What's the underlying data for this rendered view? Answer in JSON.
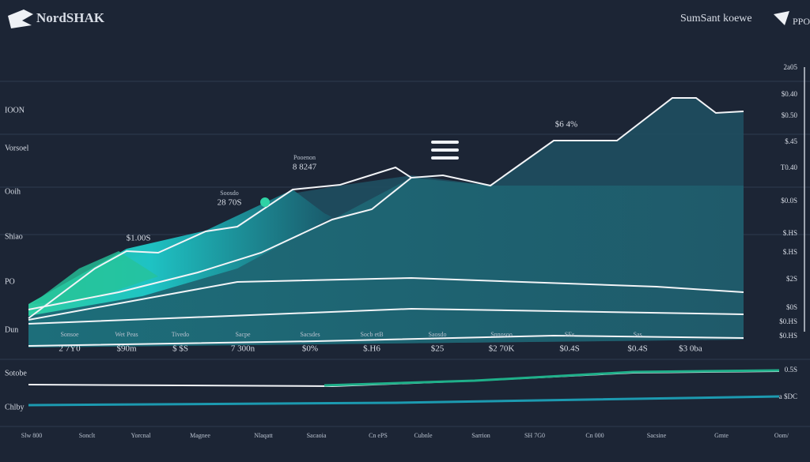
{
  "header": {
    "logo": "NordSHAK",
    "title": "SumSant koewe",
    "badge": "PPO"
  },
  "left_labels": [
    "IOON",
    "Vorsoel",
    "Ooih",
    "Shiao",
    "PO",
    "Dun",
    "Sotobe",
    "Chlby"
  ],
  "right_labels": [
    "2a05",
    "$0.40",
    "$0.50",
    "$.45",
    "T0.40",
    "$0.0S",
    "$.HS",
    "$.HS",
    "$2S",
    "$0S",
    "$0.HS",
    "$0.HS",
    "0.5S",
    "a $DC"
  ],
  "bottom_labels": [
    "Slw 800",
    "Sonclt",
    "Yorcnal",
    "Magnee",
    "Nlaqatt",
    "Sacaoia",
    "Cn ePS",
    "Cubnle",
    "Sarrion",
    "SH 7G0",
    "Cn 000",
    "Sacsine",
    "Gmte",
    "Oom/"
  ],
  "value_row": [
    "2 7Y0",
    "$90m",
    "$ $S",
    "7 300n",
    "$0%",
    "$.H6",
    "$25",
    "$2 70K",
    "$0.4S",
    "$0.4S",
    "$3 0ba"
  ],
  "caption_row": [
    "Sonsoe",
    "Wet Peas",
    "Tivedo",
    "Sacpe",
    "Sacsdes",
    "Socb etB",
    "Saosdo",
    "Snnosoo",
    "SEs",
    "Sas"
  ],
  "annotations": [
    {
      "caption": "",
      "value": "$1.00S"
    },
    {
      "caption": "Soosdo",
      "value": "28 70S"
    },
    {
      "caption": "Pooenon",
      "value": "8 8247"
    },
    {
      "caption": "",
      "value": "$6 4%"
    }
  ]
}
